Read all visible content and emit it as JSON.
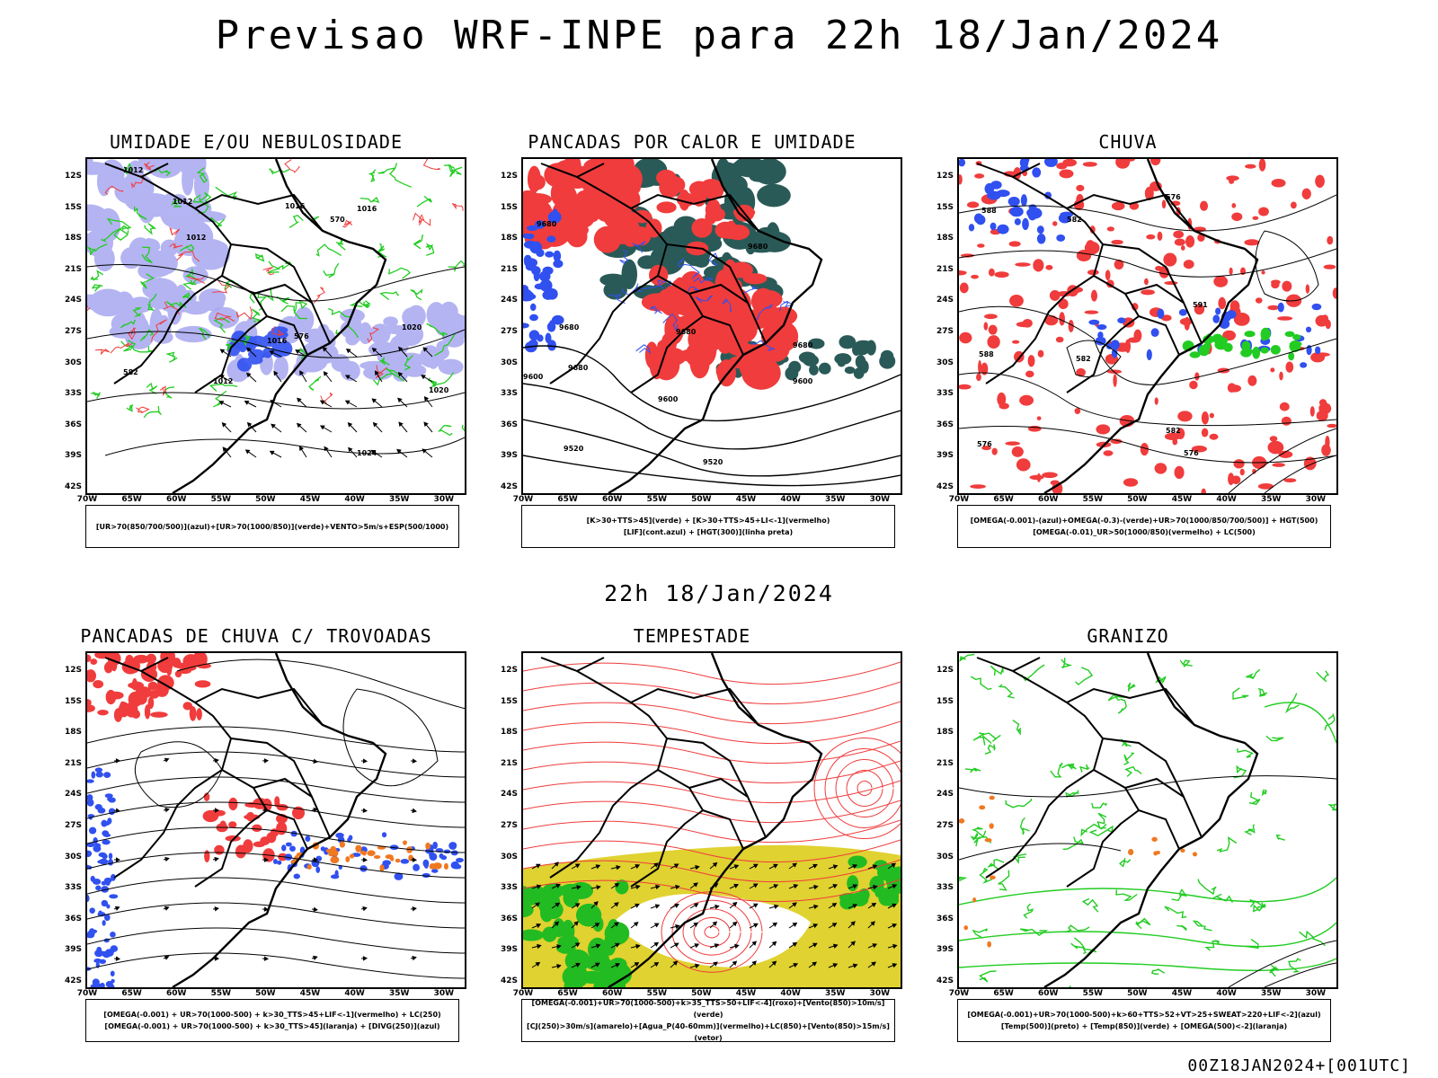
{
  "title": "Previsao WRF-INPE  para 22h 18/Jan/2024",
  "subtitle_time": "22h 18/Jan/2024",
  "footer": "00Z18JAN2024+[001UTC]",
  "axes": {
    "lat_labels": [
      "12S",
      "15S",
      "18S",
      "21S",
      "24S",
      "27S",
      "30S",
      "33S",
      "36S",
      "39S",
      "42S"
    ],
    "lon_labels": [
      "70W",
      "65W",
      "60W",
      "55W",
      "50W",
      "45W",
      "40W",
      "35W",
      "30W"
    ]
  },
  "colors": {
    "red": "#f03c3c",
    "green": "#22cc22",
    "blue": "#3050f0",
    "lightblue": "#a8a8f0",
    "darkteal": "#2a5a58",
    "yellow": "#e0d230",
    "orange": "#f07820",
    "black": "#000000"
  },
  "panels": [
    {
      "id": "umidade",
      "title": "UMIDADE E/OU NEBULOSIDADE",
      "legend": [
        "[UR>70(850/700/500)](azul)+[UR>70(1000/850)](verde)+VENTO>5m/s+ESP(500/1000)"
      ],
      "contour_labels": [
        "1012",
        "1012",
        "1016",
        "1016",
        "1020",
        "1020",
        "1024",
        "1016",
        "1012",
        "570",
        "576",
        "582"
      ]
    },
    {
      "id": "pancadas-calor",
      "title": "PANCADAS POR CALOR E UMIDADE",
      "legend": [
        "[K>30+TTS>45](verde) + [K>30+TTS>45+LI<-1](vermelho)",
        "[LIF](cont.azul) + [HGT(300)](linha preta)"
      ],
      "contour_labels": [
        "9680",
        "9680",
        "9680",
        "9600",
        "9600",
        "9520",
        "9520",
        "9640"
      ]
    },
    {
      "id": "chuva",
      "title": "CHUVA",
      "legend": [
        "[OMEGA(-0.001)-(azul)+OMEGA(-0.3)-(verde)+UR>70(1000/850/700/500)] + HGT(500)",
        "[OMEGA(-0.01)_UR>50(1000/850)(vermelho) + LC(500)"
      ],
      "contour_labels": [
        "588",
        "582",
        "576",
        "588",
        "582",
        "576",
        "591"
      ]
    },
    {
      "id": "trovoadas",
      "title": "PANCADAS DE CHUVA C/ TROVOADAS",
      "legend": [
        "[OMEGA(-0.001) + UR>70(1000-500) + k>30_TTS>45+LIF<-1](vermelho) + LC(250)",
        "[OMEGA(-0.001) + UR>70(1000-500) + k>30_TTS>45](laranja) + [DIVG(250)](azul)"
      ],
      "contour_labels": []
    },
    {
      "id": "tempestade",
      "title": "TEMPESTADE",
      "legend": [
        "[OMEGA(-0.001)+UR>70(1000-500)+k>35_TTS>50+LIF<-4](roxo)+[Vento(850)>10m/s](verde)",
        "[CJ(250)>30m/s](amarelo)+[Agua_P(40-60mm)](vermelho)+LC(850)+[Vento(850)>15m/s](vetor)"
      ],
      "contour_labels": []
    },
    {
      "id": "granizo",
      "title": "GRANIZO",
      "legend": [
        "[OMEGA(-0.001)+UR>70(1000-500)+k>60+TTS>52+VT>25+SWEAT>220+LIF<-2](azul)",
        "[Temp(500)](preto) + [Temp(850)](verde) + [OMEGA(500)<-2](laranja)"
      ],
      "contour_labels": []
    }
  ]
}
